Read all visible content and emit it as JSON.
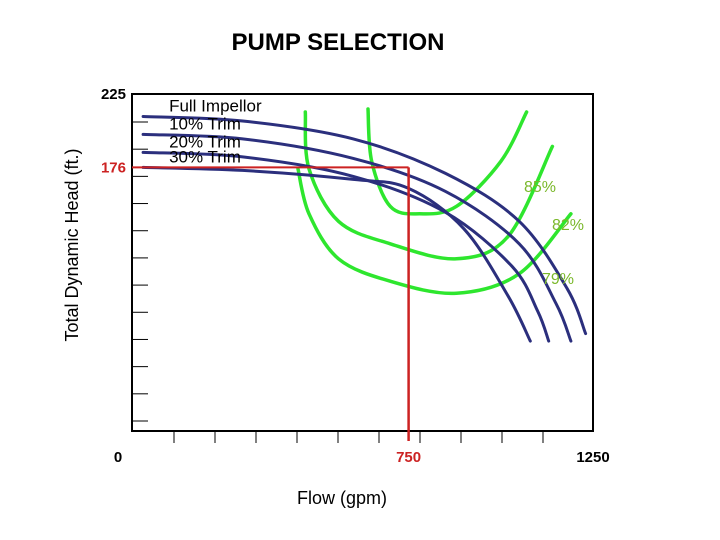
{
  "chart_data": {
    "type": "line",
    "title": "PUMP SELECTION",
    "xlabel": "Flow  (gpm)",
    "ylabel": "Total Dynamic Head  (ft.)",
    "xlim": [
      0,
      1250
    ],
    "ylim": [
      0,
      225
    ],
    "x_tick_labels": [
      {
        "value": 0,
        "label": "0"
      },
      {
        "value": 750,
        "label": "750"
      },
      {
        "value": 1250,
        "label": "1250"
      }
    ],
    "y_tick_labels": [
      {
        "value": 225,
        "label": "225"
      },
      {
        "value": 176,
        "label": "176"
      }
    ],
    "grid": false,
    "colors": {
      "pump_curve": "#2b2f7d",
      "efficiency_curve": "#2ee62e",
      "operating_point": "#cc2222",
      "efficiency_text": "#7ab82a",
      "text": "#000000"
    },
    "pump_curves": [
      {
        "name": "Full Impellor",
        "points": [
          [
            30,
            210
          ],
          [
            300,
            207
          ],
          [
            600,
            195
          ],
          [
            850,
            172
          ],
          [
            1050,
            140
          ],
          [
            1180,
            95
          ],
          [
            1230,
            65
          ]
        ]
      },
      {
        "name": "10% Trim",
        "points": [
          [
            30,
            198
          ],
          [
            300,
            195
          ],
          [
            600,
            182
          ],
          [
            850,
            160
          ],
          [
            1050,
            125
          ],
          [
            1150,
            85
          ],
          [
            1190,
            60
          ]
        ]
      },
      {
        "name": "20% Trim",
        "points": [
          [
            30,
            186
          ],
          [
            300,
            183
          ],
          [
            600,
            170
          ],
          [
            850,
            146
          ],
          [
            1030,
            110
          ],
          [
            1100,
            80
          ],
          [
            1130,
            60
          ]
        ]
      },
      {
        "name": "30% Trim",
        "points": [
          [
            30,
            176
          ],
          [
            300,
            174
          ],
          [
            600,
            168
          ],
          [
            750,
            162
          ],
          [
            900,
            135
          ],
          [
            1020,
            90
          ],
          [
            1080,
            60
          ]
        ]
      }
    ],
    "efficiency_curves": [
      {
        "label": "85%",
        "points": [
          [
            640,
            215
          ],
          [
            650,
            180
          ],
          [
            700,
            150
          ],
          [
            780,
            145
          ],
          [
            880,
            150
          ],
          [
            1000,
            180
          ],
          [
            1070,
            213
          ]
        ]
      },
      {
        "label": "82%",
        "points": [
          [
            470,
            213
          ],
          [
            480,
            175
          ],
          [
            560,
            140
          ],
          [
            700,
            125
          ],
          [
            880,
            115
          ],
          [
            1020,
            130
          ],
          [
            1140,
            190
          ]
        ]
      },
      {
        "label": "79%",
        "points": [
          [
            450,
            175
          ],
          [
            480,
            145
          ],
          [
            560,
            115
          ],
          [
            700,
            100
          ],
          [
            880,
            92
          ],
          [
            1050,
            105
          ],
          [
            1190,
            145
          ]
        ]
      }
    ],
    "operating_point": {
      "flow": 750,
      "head": 176
    }
  }
}
